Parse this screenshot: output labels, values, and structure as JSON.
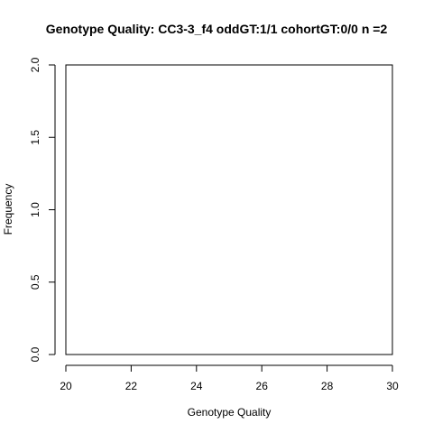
{
  "chart_data": {
    "type": "bar",
    "title": "Genotype Quality: CC3-3_f4 oddGT:1/1  cohortGT:0/0 n =2",
    "xlabel": "Genotype Quality",
    "ylabel": "Frequency",
    "xlim": [
      20,
      30
    ],
    "ylim": [
      0,
      2
    ],
    "x_ticks": [
      "20",
      "22",
      "24",
      "26",
      "28",
      "30"
    ],
    "y_ticks": [
      "0.0",
      "0.5",
      "1.0",
      "1.5",
      "2.0"
    ],
    "bars": [],
    "grid": false,
    "legend": "none"
  }
}
